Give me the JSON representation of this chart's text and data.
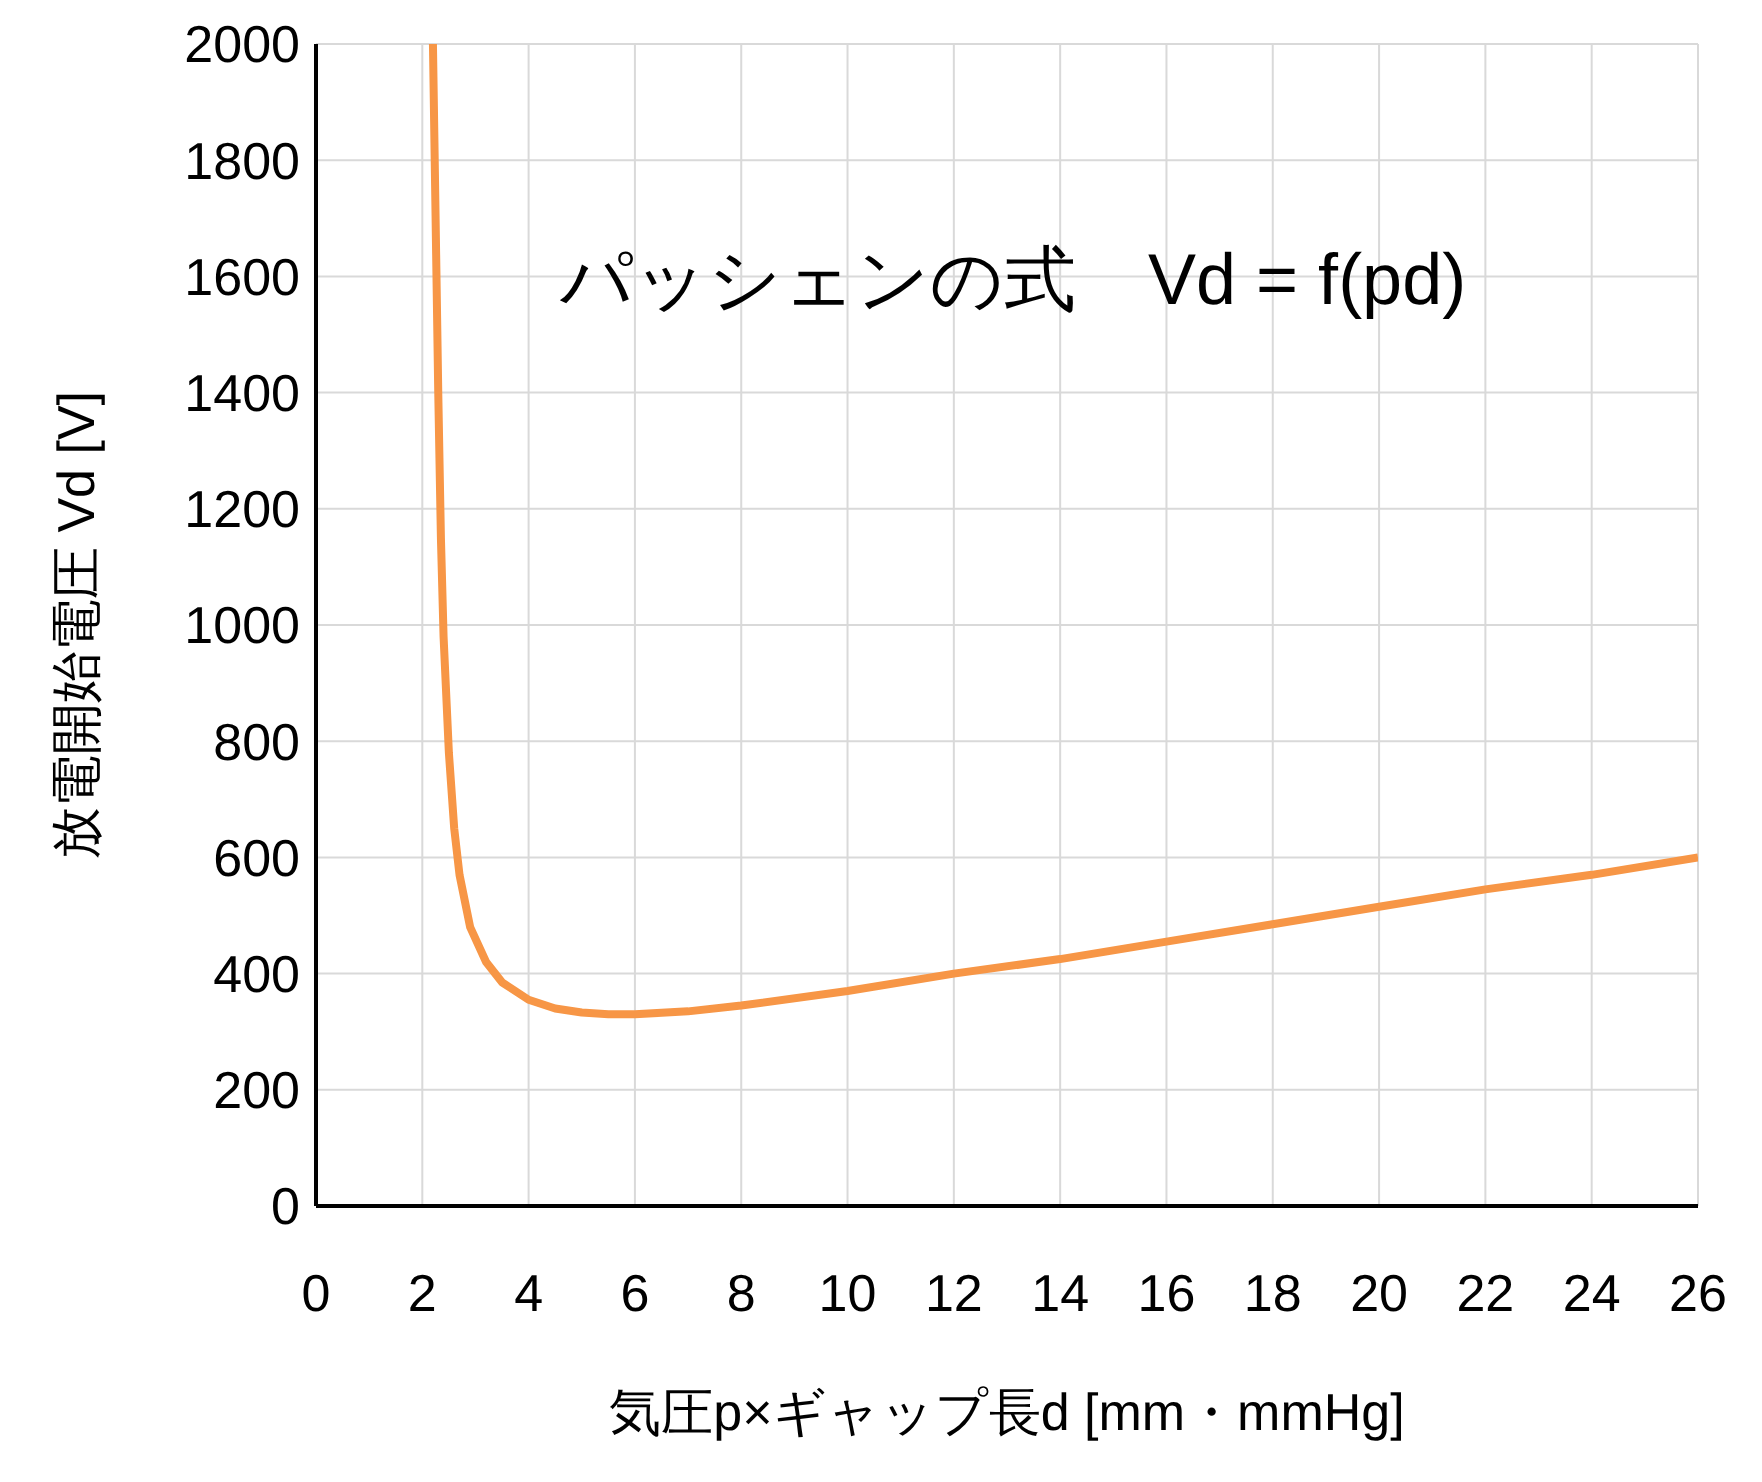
{
  "chart_data": {
    "type": "line",
    "xlabel": "気圧p×ギャップ長d [mm・mmHg]",
    "ylabel": "放電開始電圧 Vd  [V]",
    "annotations": [
      "パッシェンの式　Vd = f(pd)"
    ],
    "series": [
      {
        "color": "#f79646",
        "x": [
          2.2,
          2.25,
          2.3,
          2.35,
          2.4,
          2.5,
          2.6,
          2.7,
          2.9,
          3.2,
          3.5,
          4,
          4.5,
          5,
          5.5,
          6,
          7,
          8,
          10,
          12,
          14,
          16,
          18,
          20,
          22,
          24,
          26
        ],
        "values": [
          2000,
          1700,
          1400,
          1150,
          980,
          780,
          650,
          570,
          480,
          420,
          385,
          355,
          340,
          333,
          330,
          330,
          335,
          345,
          370,
          400,
          425,
          455,
          485,
          515,
          545,
          570,
          600
        ]
      }
    ],
    "xlim": [
      0,
      26
    ],
    "xticks": [
      0,
      2,
      4,
      6,
      8,
      10,
      12,
      14,
      16,
      18,
      20,
      22,
      24,
      26
    ],
    "ylim": [
      0,
      2000
    ],
    "yticks": [
      0,
      200,
      400,
      600,
      800,
      1000,
      1200,
      1400,
      1600,
      1800,
      2000
    ],
    "grid": true,
    "marker": "none",
    "line_style": "solid",
    "legend": false
  }
}
